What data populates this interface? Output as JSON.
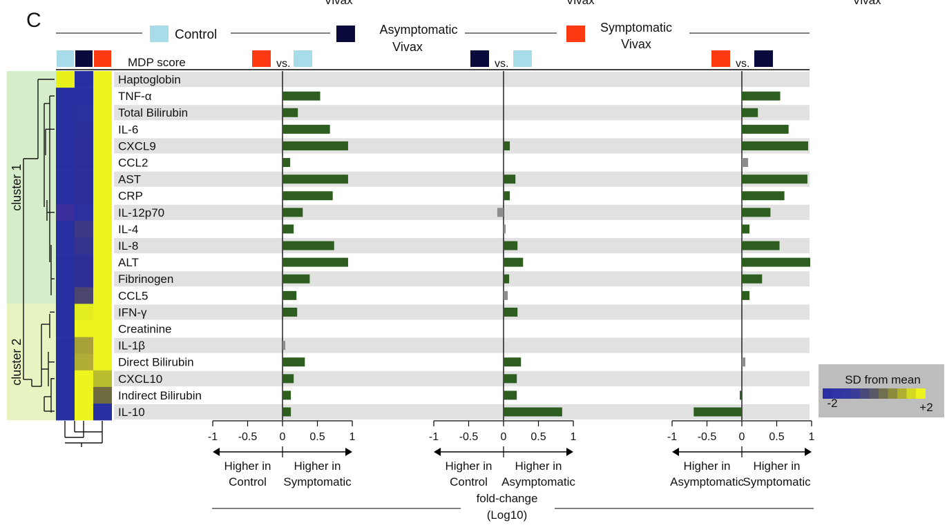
{
  "panel_label": "C",
  "clipped_top_labels": [
    "Vivax",
    "Vivax",
    "Vivax"
  ],
  "legend": {
    "groups": [
      {
        "name": "Control",
        "color": "#a8dce8"
      },
      {
        "name": "Asymptomatic Vivax",
        "line1": "Asymptomatic",
        "line2": "Vivax",
        "color": "#0a0a3c"
      },
      {
        "name": "Symptomatic Vivax",
        "line1": "Symptomatic",
        "line2": "Vivax",
        "color": "#ff3a12"
      }
    ]
  },
  "mdp_label": "MDP score",
  "vs_label": "vs.",
  "clusters": [
    {
      "name": "cluster 1",
      "from": 0,
      "to": 13,
      "color": "#d6edc9"
    },
    {
      "name": "cluster 2",
      "from": 14,
      "to": 20,
      "color": "#e8f3c2"
    }
  ],
  "markers": [
    "Haptoglobin",
    "TNF-α",
    "Total Bilirubin",
    "IL-6",
    "CXCL9",
    "CCL2",
    "AST",
    "CRP",
    "IL-12p70",
    "IL-4",
    "IL-8",
    "ALT",
    "Fibrinogen",
    "CCL5",
    "IFN-γ",
    "Creatinine",
    "IL-1β",
    "Direct Bilirubin",
    "CXCL10",
    "Indirect Bilirubin",
    "IL-10"
  ],
  "heatmap": {
    "columns": [
      "Control",
      "Asymptomatic Vivax",
      "Symptomatic Vivax"
    ],
    "colors": [
      [
        "#e8f21a",
        "#2630a0",
        "#eef51e"
      ],
      [
        "#2630a0",
        "#2630a0",
        "#eef51e"
      ],
      [
        "#2630a0",
        "#28329e",
        "#eef51e"
      ],
      [
        "#2630a0",
        "#2a309a",
        "#eef51e"
      ],
      [
        "#2630a0",
        "#2c2e98",
        "#eef51e"
      ],
      [
        "#2630a0",
        "#2c2e98",
        "#eef51e"
      ],
      [
        "#2630a0",
        "#2c2e98",
        "#eef51e"
      ],
      [
        "#2630a0",
        "#2c2e98",
        "#eef51e"
      ],
      [
        "#3a2f9c",
        "#2a30a0",
        "#eef51e"
      ],
      [
        "#2630a0",
        "#3c3a88",
        "#eef51e"
      ],
      [
        "#2630a0",
        "#36338e",
        "#eef51e"
      ],
      [
        "#2630a0",
        "#2e2e96",
        "#eef51e"
      ],
      [
        "#2630a0",
        "#2e2e96",
        "#eef51e"
      ],
      [
        "#2630a0",
        "#4a4670",
        "#eef51e"
      ],
      [
        "#2630a0",
        "#e2ec20",
        "#eef51e"
      ],
      [
        "#2630a0",
        "#eef51e",
        "#eef51e"
      ],
      [
        "#2630a0",
        "#a8a038",
        "#eef51e"
      ],
      [
        "#2630a0",
        "#b0ac36",
        "#eef51e"
      ],
      [
        "#2630a0",
        "#eef51e",
        "#b8bc2e"
      ],
      [
        "#2630a0",
        "#eef51e",
        "#6e6c3e"
      ],
      [
        "#2630a0",
        "#eef51e",
        "#2630a0"
      ]
    ]
  },
  "chart_data": {
    "type": "bar",
    "orientation": "horizontal",
    "categories": [
      "Haptoglobin",
      "TNF-α",
      "Total Bilirubin",
      "IL-6",
      "CXCL9",
      "CCL2",
      "AST",
      "CRP",
      "IL-12p70",
      "IL-4",
      "IL-8",
      "ALT",
      "Fibrinogen",
      "CCL5",
      "IFN-γ",
      "Creatinine",
      "IL-1β",
      "Direct Bilirubin",
      "CXCL10",
      "Indirect Bilirubin",
      "IL-10"
    ],
    "xlim": [
      -1,
      1
    ],
    "xticks": [
      "-1",
      "-0.5",
      "0",
      "0.5",
      "1"
    ],
    "xlabel_line1": "fold-change",
    "xlabel_line2": "(Log10)",
    "series": [
      {
        "comparison": [
          "Symptomatic Vivax",
          "Control"
        ],
        "left_label": [
          "Higher in",
          "Control"
        ],
        "right_label": [
          "Higher in",
          "Symptomatic"
        ],
        "values": [
          0,
          0.54,
          0.22,
          0.68,
          0.94,
          0.11,
          0.94,
          0.72,
          0.29,
          0.16,
          0.74,
          0.94,
          0.39,
          0.2,
          0.21,
          0,
          0.04,
          0.32,
          0.16,
          0.12,
          0.12
        ],
        "significant": [
          true,
          true,
          true,
          true,
          true,
          true,
          true,
          true,
          true,
          true,
          true,
          true,
          true,
          true,
          true,
          true,
          false,
          true,
          true,
          true,
          true
        ]
      },
      {
        "comparison": [
          "Asymptomatic Vivax",
          "Control"
        ],
        "left_label": [
          "Higher in",
          "Control"
        ],
        "right_label": [
          "Higher in",
          "Asymptomatic"
        ],
        "values": [
          0,
          0,
          0,
          0,
          0.09,
          0,
          0.17,
          0.09,
          -0.09,
          0.03,
          0.2,
          0.28,
          0.08,
          0.06,
          0.2,
          0,
          0,
          0.25,
          0.19,
          0.19,
          0.84
        ],
        "significant": [
          true,
          true,
          true,
          true,
          true,
          true,
          true,
          true,
          false,
          false,
          true,
          true,
          true,
          false,
          true,
          true,
          true,
          true,
          true,
          true,
          true
        ]
      },
      {
        "comparison": [
          "Symptomatic Vivax",
          "Asymptomatic Vivax"
        ],
        "left_label": [
          "Higher in",
          "Asymptomatic"
        ],
        "right_label": [
          "Higher in",
          "Symptomatic"
        ],
        "values": [
          0,
          0.55,
          0.23,
          0.67,
          0.95,
          0.09,
          0.94,
          0.61,
          0.41,
          0.11,
          0.54,
          0.98,
          0.29,
          0.11,
          0,
          0,
          0,
          0.05,
          0,
          -0.03,
          -0.69
        ],
        "significant": [
          true,
          true,
          true,
          true,
          true,
          false,
          true,
          true,
          true,
          true,
          true,
          true,
          true,
          true,
          true,
          true,
          true,
          false,
          true,
          true,
          true
        ]
      }
    ],
    "bar_color": "#2d5e1f",
    "nonsignificant_color": "#8c8c8c"
  },
  "scale_legend": {
    "title": "SD from mean",
    "min_label": "-2",
    "max_label": "+2",
    "colors": [
      "#2a2fa4",
      "#2f34a6",
      "#3337a0",
      "#3a3b96",
      "#4a4a7a",
      "#5a5866",
      "#707050",
      "#8c8c3c",
      "#b0b030",
      "#d4da22",
      "#eef51e"
    ]
  }
}
